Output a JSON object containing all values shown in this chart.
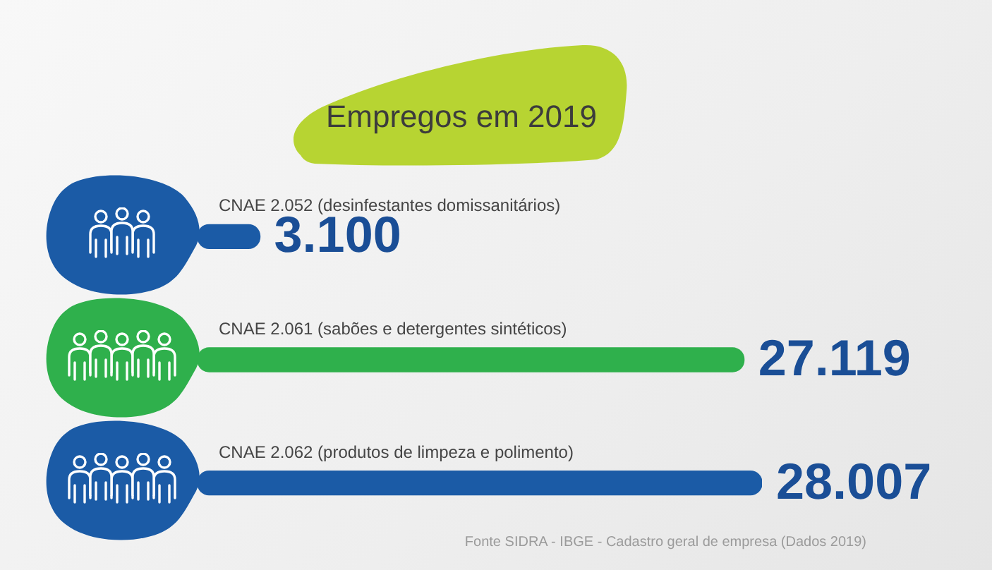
{
  "chart_data": {
    "type": "bar",
    "orientation": "horizontal",
    "title": "Empregos em 2019",
    "categories": [
      "CNAE 2.052 (desinfestantes domissanitários)",
      "CNAE 2.061 (sabões e detergentes sintéticos)",
      "CNAE 2.062 (produtos de limpeza e polimento)"
    ],
    "values": [
      3100,
      27119,
      28007
    ],
    "colors": [
      "#1b5ba6",
      "#2fb04c",
      "#1b5ba6"
    ],
    "value_labels": [
      "3.100",
      "27.119",
      "28.007"
    ],
    "tick_labels": "y",
    "annotations": [
      "Fonte SIDRA - IBGE - Cadastro geral de empresa (Dados 2019)"
    ]
  }
}
